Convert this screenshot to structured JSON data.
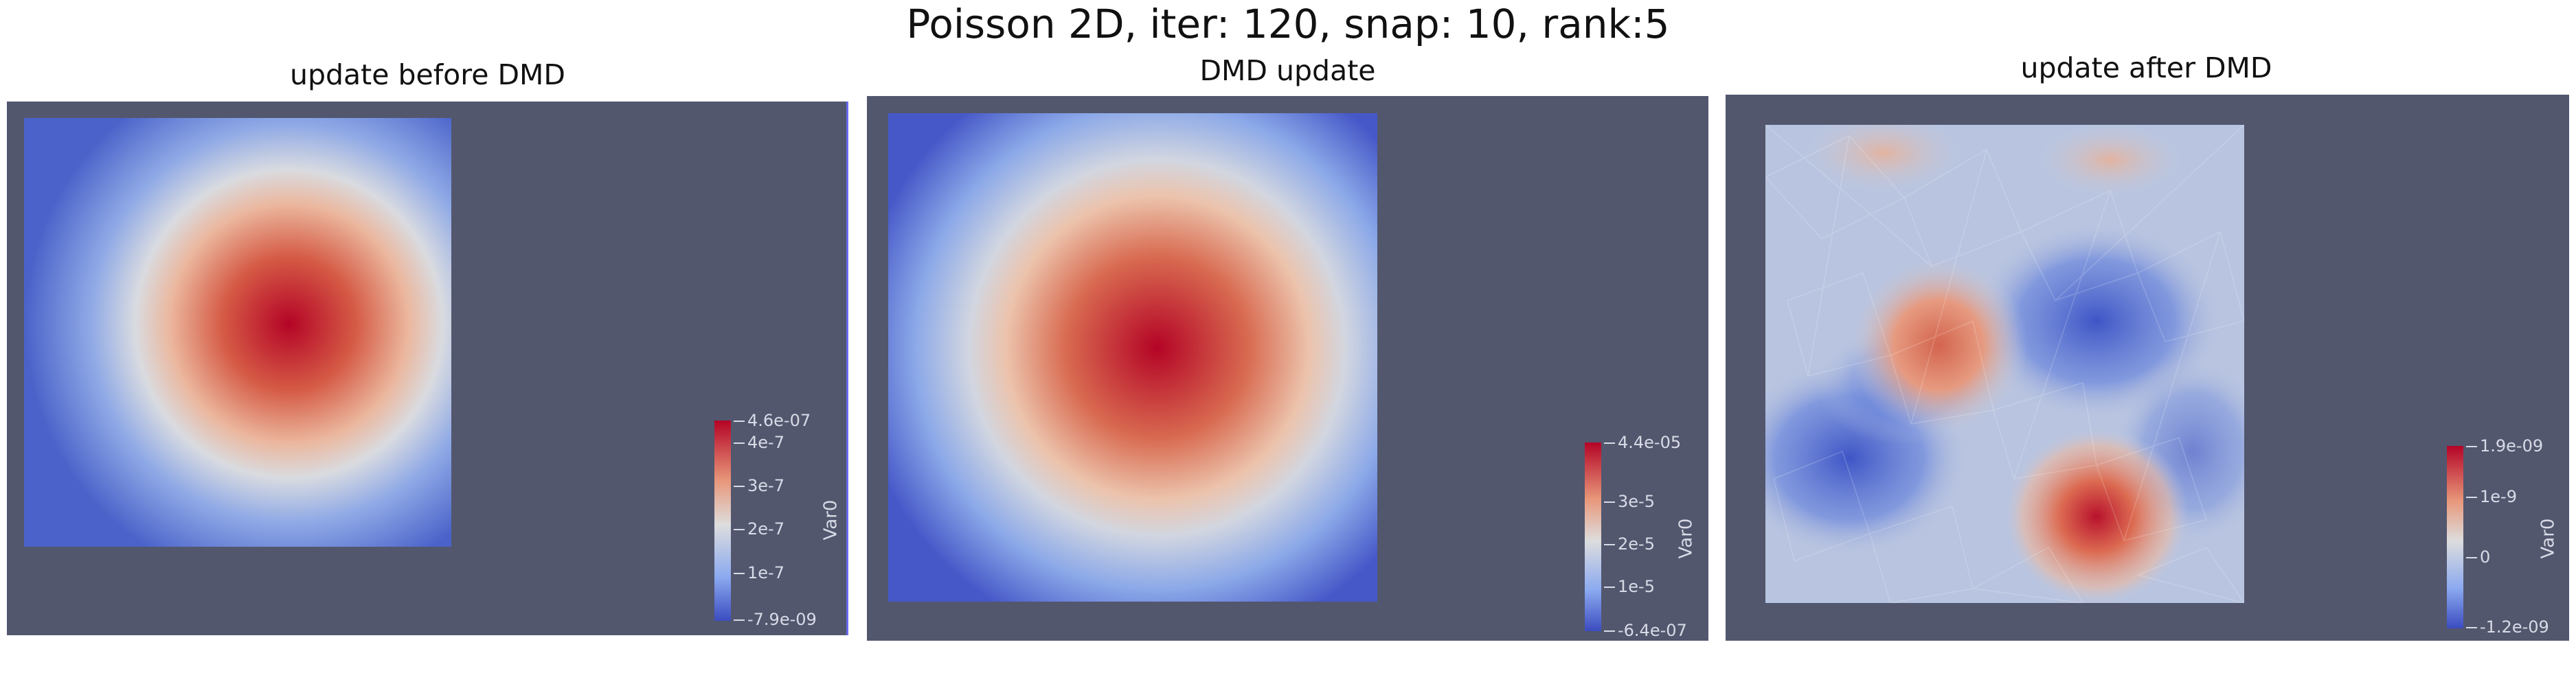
{
  "title": "Poisson 2D, iter: 120, snap: 10, rank:5",
  "colors": {
    "background": "#52576e",
    "cmap_low": "#3b4cc0",
    "cmap_mid": "#dddddd",
    "cmap_high": "#b40426",
    "tick_text": "#d8dbe6"
  },
  "panels": [
    {
      "title": "update before DMD",
      "field_shape": "skewed-gaussian",
      "colorbar": {
        "variable": "Var0",
        "range_max": "4.6e-07",
        "range_min": "-7.9e-09",
        "ticks": [
          "4e-7",
          "3e-7",
          "2e-7",
          "1e-7"
        ]
      }
    },
    {
      "title": "DMD update",
      "field_shape": "centered-gaussian",
      "colorbar": {
        "variable": "Var0",
        "range_max": "4.4e-05",
        "range_min": "-6.4e-07",
        "ticks": [
          "3e-5",
          "2e-5",
          "1e-5"
        ]
      }
    },
    {
      "title": "update after DMD",
      "field_shape": "noisy-mesh",
      "colorbar": {
        "variable": "Var0",
        "range_max": "1.9e-09",
        "range_min": "-1.2e-09",
        "ticks": [
          "1e-9",
          "0"
        ]
      }
    }
  ]
}
